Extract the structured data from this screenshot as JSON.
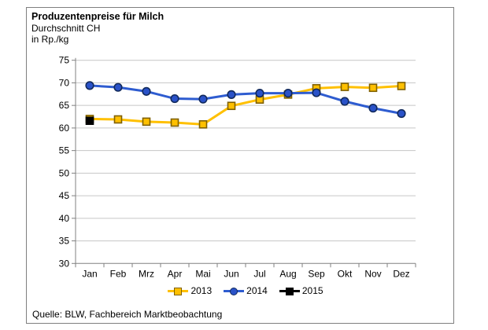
{
  "header": {
    "title": "Produzentenpreise für Milch",
    "subtitle": "Durchschnitt CH",
    "unit": "in Rp./kg"
  },
  "footer": {
    "source": "Quelle: BLW, Fachbereich Marktbeobachtung"
  },
  "colors": {
    "frame_border": "#7f7f7f",
    "axis": "#808080",
    "grid": "#c6c6c6",
    "series_2013": "#FFC000",
    "series_2014": "#2E5CD0",
    "series_2015": "#000000"
  },
  "chart_data": {
    "type": "line",
    "title": "Produzentenpreise für Milch",
    "subtitle": "Durchschnitt CH",
    "ylabel": "in Rp./kg",
    "categories": [
      "Jan",
      "Feb",
      "Mrz",
      "Apr",
      "Mai",
      "Jun",
      "Jul",
      "Aug",
      "Sep",
      "Okt",
      "Nov",
      "Dez"
    ],
    "y_ticks": [
      30,
      35,
      40,
      45,
      50,
      55,
      60,
      65,
      70,
      75
    ],
    "ylim": [
      30,
      75
    ],
    "grid": true,
    "legend_position": "bottom",
    "axis_color": "#808080",
    "grid_color": "#c6c6c6",
    "series": [
      {
        "name": "2013",
        "marker": "square",
        "color": "#FFC000",
        "marker_fill": "#FFC000",
        "marker_border": "#7F6000",
        "values": [
          62.0,
          61.9,
          61.4,
          61.2,
          60.8,
          64.9,
          66.3,
          67.4,
          68.8,
          69.1,
          68.9,
          69.3
        ]
      },
      {
        "name": "2014",
        "marker": "circle",
        "color": "#2E5CD0",
        "marker_fill": "#2A52C8",
        "marker_border": "#122A5C",
        "values": [
          69.4,
          69.0,
          68.1,
          66.5,
          66.4,
          67.4,
          67.7,
          67.7,
          67.8,
          65.9,
          64.4,
          63.2
        ]
      },
      {
        "name": "2015",
        "marker": "square",
        "color": "#000000",
        "marker_fill": "#000000",
        "marker_border": "#000000",
        "values": [
          61.6,
          null,
          null,
          null,
          null,
          null,
          null,
          null,
          null,
          null,
          null,
          null
        ]
      }
    ]
  }
}
